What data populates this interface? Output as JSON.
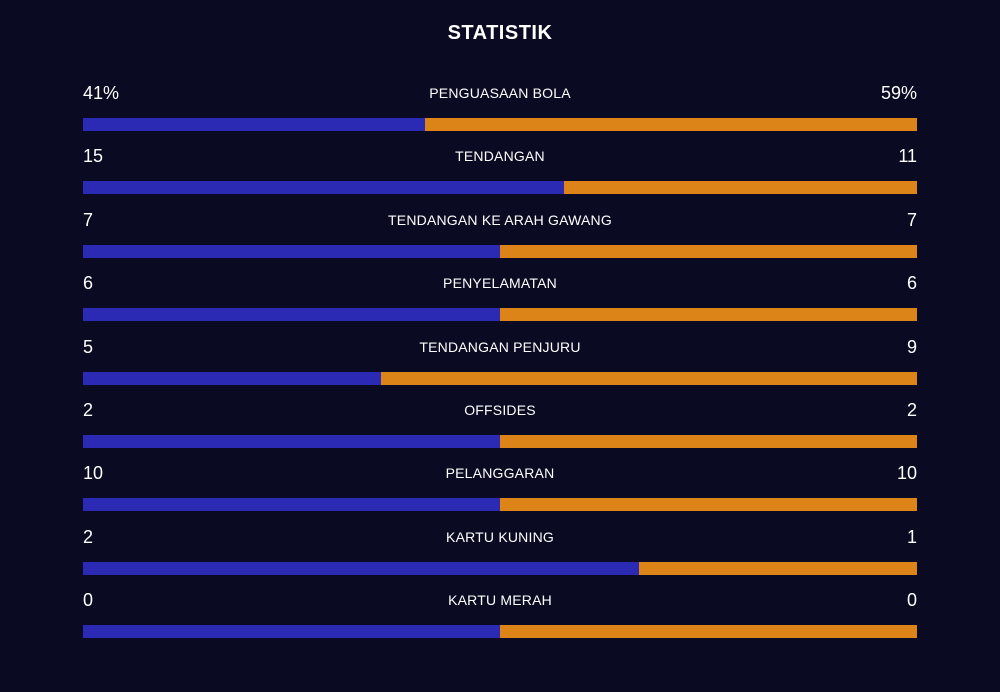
{
  "title": "STATISTIK",
  "colors": {
    "home": "#2a2ab5",
    "away": "#dc8418",
    "background": "#0a0a22"
  },
  "stats": [
    {
      "label": "PENGUASAAN BOLA",
      "home": "41%",
      "away": "59%",
      "home_value": 41,
      "away_value": 59
    },
    {
      "label": "TENDANGAN",
      "home": "15",
      "away": "11",
      "home_value": 15,
      "away_value": 11
    },
    {
      "label": "TENDANGAN KE ARAH GAWANG",
      "home": "7",
      "away": "7",
      "home_value": 7,
      "away_value": 7
    },
    {
      "label": "PENYELAMATAN",
      "home": "6",
      "away": "6",
      "home_value": 6,
      "away_value": 6
    },
    {
      "label": "TENDANGAN PENJURU",
      "home": "5",
      "away": "9",
      "home_value": 5,
      "away_value": 9
    },
    {
      "label": "OFFSIDES",
      "home": "2",
      "away": "2",
      "home_value": 2,
      "away_value": 2
    },
    {
      "label": "PELANGGARAN",
      "home": "10",
      "away": "10",
      "home_value": 10,
      "away_value": 10
    },
    {
      "label": "KARTU KUNING",
      "home": "2",
      "away": "1",
      "home_value": 2,
      "away_value": 1
    },
    {
      "label": "KARTU MERAH",
      "home": "0",
      "away": "0",
      "home_value": 0,
      "away_value": 0
    }
  ]
}
